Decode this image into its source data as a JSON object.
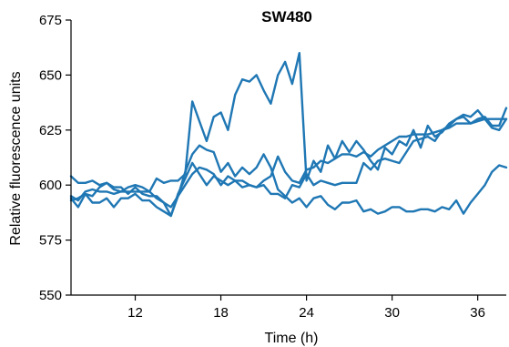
{
  "chart_data": {
    "type": "line",
    "title": "SW480",
    "xlabel": "Time (h)",
    "ylabel": "Relative fluorescence units",
    "xlim": [
      7.5,
      38
    ],
    "ylim": [
      550,
      675
    ],
    "xticks": [
      12,
      18,
      24,
      30,
      36
    ],
    "yticks": [
      550,
      575,
      600,
      625,
      650,
      675
    ],
    "grid": false,
    "color": "#1f77b4",
    "series": [
      {
        "points": [
          [
            7.5,
            604
          ],
          [
            8,
            601
          ],
          [
            8.5,
            601
          ],
          [
            9,
            602
          ],
          [
            9.5,
            600
          ],
          [
            10,
            601
          ],
          [
            10.5,
            598
          ],
          [
            11,
            597
          ],
          [
            11.5,
            599
          ],
          [
            12,
            600
          ],
          [
            12.5,
            599
          ],
          [
            13,
            597
          ],
          [
            13.5,
            603
          ],
          [
            14,
            601
          ],
          [
            14.5,
            602
          ],
          [
            15,
            602
          ],
          [
            15.5,
            605
          ],
          [
            16,
            638
          ],
          [
            16.5,
            629
          ],
          [
            17,
            620
          ],
          [
            17.5,
            631
          ],
          [
            18,
            633
          ],
          [
            18.5,
            625
          ],
          [
            19,
            641
          ],
          [
            19.5,
            648
          ],
          [
            20,
            647
          ],
          [
            20.5,
            650
          ],
          [
            21,
            643
          ],
          [
            21.5,
            637
          ],
          [
            22,
            650
          ],
          [
            22.5,
            656
          ],
          [
            23,
            646
          ],
          [
            23.5,
            660
          ],
          [
            24,
            602
          ],
          [
            24.5,
            611
          ],
          [
            25,
            606
          ],
          [
            25.5,
            618
          ],
          [
            26,
            612
          ],
          [
            26.5,
            620
          ],
          [
            27,
            615
          ],
          [
            27.5,
            620
          ],
          [
            28,
            616
          ],
          [
            28.5,
            611
          ],
          [
            29,
            607
          ],
          [
            29.5,
            617
          ],
          [
            30,
            614
          ],
          [
            30.5,
            620
          ],
          [
            31,
            618
          ],
          [
            31.5,
            625
          ],
          [
            32,
            617
          ],
          [
            32.5,
            627
          ],
          [
            33,
            622
          ],
          [
            33.5,
            624
          ],
          [
            34,
            628
          ],
          [
            34.5,
            630
          ],
          [
            35,
            632
          ],
          [
            35.5,
            631
          ],
          [
            36,
            634
          ],
          [
            36.5,
            630
          ],
          [
            37,
            626
          ],
          [
            37.5,
            625
          ],
          [
            38,
            630
          ]
        ]
      },
      {
        "points": [
          [
            7.5,
            594
          ],
          [
            8,
            590
          ],
          [
            8.5,
            596
          ],
          [
            9,
            592
          ],
          [
            9.5,
            592
          ],
          [
            10,
            594
          ],
          [
            10.5,
            590
          ],
          [
            11,
            594
          ],
          [
            11.5,
            594
          ],
          [
            12,
            596
          ],
          [
            12.5,
            593
          ],
          [
            13,
            593
          ],
          [
            13.5,
            590
          ],
          [
            14,
            588
          ],
          [
            14.5,
            586
          ],
          [
            15,
            596
          ],
          [
            15.5,
            603
          ],
          [
            16,
            610
          ],
          [
            16.5,
            605
          ],
          [
            17,
            600
          ],
          [
            17.5,
            604
          ],
          [
            18,
            602
          ],
          [
            18.5,
            600
          ],
          [
            19,
            602
          ],
          [
            19.5,
            599
          ],
          [
            20,
            600
          ],
          [
            20.5,
            599
          ],
          [
            21,
            600
          ],
          [
            21.5,
            596
          ],
          [
            22,
            596
          ],
          [
            22.5,
            594
          ],
          [
            23,
            600
          ],
          [
            23.5,
            599
          ],
          [
            24,
            605
          ],
          [
            24.5,
            600
          ],
          [
            25,
            602
          ],
          [
            25.5,
            601
          ],
          [
            26,
            600
          ],
          [
            26.5,
            601
          ],
          [
            27,
            601
          ],
          [
            27.5,
            601
          ],
          [
            28,
            610
          ],
          [
            28.5,
            607
          ],
          [
            29,
            611
          ],
          [
            29.5,
            612
          ],
          [
            30,
            611
          ],
          [
            30.5,
            610
          ],
          [
            31,
            615
          ],
          [
            31.5,
            620
          ],
          [
            32,
            621
          ],
          [
            32.5,
            622
          ],
          [
            33,
            620
          ],
          [
            33.5,
            625
          ],
          [
            34,
            627
          ],
          [
            34.5,
            630
          ],
          [
            35,
            631
          ],
          [
            35.5,
            628
          ],
          [
            36,
            630
          ],
          [
            36.5,
            631
          ],
          [
            37,
            627
          ],
          [
            37.5,
            627
          ],
          [
            38,
            635
          ]
        ]
      },
      {
        "points": [
          [
            7.5,
            593
          ],
          [
            8,
            594
          ],
          [
            8.5,
            596
          ],
          [
            9,
            595
          ],
          [
            9.5,
            599
          ],
          [
            10,
            601
          ],
          [
            10.5,
            599
          ],
          [
            11,
            599
          ],
          [
            11.5,
            596
          ],
          [
            12,
            599
          ],
          [
            12.5,
            596
          ],
          [
            13,
            595
          ],
          [
            13.5,
            595
          ],
          [
            14,
            592
          ],
          [
            14.5,
            586
          ],
          [
            15,
            595
          ],
          [
            15.5,
            606
          ],
          [
            16,
            614
          ],
          [
            16.5,
            618
          ],
          [
            17,
            616
          ],
          [
            17.5,
            615
          ],
          [
            18,
            606
          ],
          [
            18.5,
            610
          ],
          [
            19,
            604
          ],
          [
            19.5,
            608
          ],
          [
            20,
            605
          ],
          [
            20.5,
            608
          ],
          [
            21,
            614
          ],
          [
            21.5,
            608
          ],
          [
            22,
            598
          ],
          [
            22.5,
            595
          ],
          [
            23,
            592
          ],
          [
            23.5,
            594
          ],
          [
            24,
            590
          ],
          [
            24.5,
            594
          ],
          [
            25,
            595
          ],
          [
            25.5,
            591
          ],
          [
            26,
            589
          ],
          [
            26.5,
            592
          ],
          [
            27,
            592
          ],
          [
            27.5,
            593
          ],
          [
            28,
            588
          ],
          [
            28.5,
            589
          ],
          [
            29,
            587
          ],
          [
            29.5,
            588
          ],
          [
            30,
            590
          ],
          [
            30.5,
            590
          ],
          [
            31,
            588
          ],
          [
            31.5,
            588
          ],
          [
            32,
            589
          ],
          [
            32.5,
            589
          ],
          [
            33,
            588
          ],
          [
            33.5,
            590
          ],
          [
            34,
            589
          ],
          [
            34.5,
            593
          ],
          [
            35,
            587
          ],
          [
            35.5,
            592
          ],
          [
            36,
            596
          ],
          [
            36.5,
            600
          ],
          [
            37,
            606
          ],
          [
            37.5,
            609
          ],
          [
            38,
            608
          ]
        ]
      },
      {
        "points": [
          [
            7.5,
            595
          ],
          [
            8,
            593
          ],
          [
            8.5,
            597
          ],
          [
            9,
            598
          ],
          [
            9.5,
            597
          ],
          [
            10,
            597
          ],
          [
            10.5,
            596
          ],
          [
            11,
            597
          ],
          [
            11.5,
            597
          ],
          [
            12,
            597
          ],
          [
            12.5,
            597
          ],
          [
            13,
            597
          ],
          [
            13.5,
            594
          ],
          [
            14,
            592
          ],
          [
            14.5,
            590
          ],
          [
            15,
            595
          ],
          [
            15.5,
            600
          ],
          [
            16,
            605
          ],
          [
            16.5,
            608
          ],
          [
            17,
            607
          ],
          [
            17.5,
            605
          ],
          [
            18,
            600
          ],
          [
            18.5,
            604
          ],
          [
            19,
            602
          ],
          [
            19.5,
            602
          ],
          [
            20,
            600
          ],
          [
            20.5,
            599
          ],
          [
            21,
            602
          ],
          [
            21.5,
            604
          ],
          [
            22,
            613
          ],
          [
            22.5,
            606
          ],
          [
            23,
            602
          ],
          [
            23.5,
            601
          ],
          [
            24,
            607
          ],
          [
            24.5,
            608
          ],
          [
            25,
            611
          ],
          [
            25.5,
            610
          ],
          [
            26,
            612
          ],
          [
            26.5,
            614
          ],
          [
            27,
            614
          ],
          [
            27.5,
            613
          ],
          [
            28,
            615
          ],
          [
            28.5,
            613
          ],
          [
            29,
            616
          ],
          [
            29.5,
            618
          ],
          [
            30,
            620
          ],
          [
            30.5,
            622
          ],
          [
            31,
            622
          ],
          [
            31.5,
            623
          ],
          [
            32,
            623
          ],
          [
            32.5,
            623
          ],
          [
            33,
            624
          ],
          [
            33.5,
            625
          ],
          [
            34,
            626
          ],
          [
            34.5,
            628
          ],
          [
            35,
            628
          ],
          [
            35.5,
            628
          ],
          [
            36,
            629
          ],
          [
            36.5,
            630
          ],
          [
            37,
            630
          ],
          [
            37.5,
            630
          ],
          [
            38,
            630
          ]
        ]
      }
    ]
  }
}
